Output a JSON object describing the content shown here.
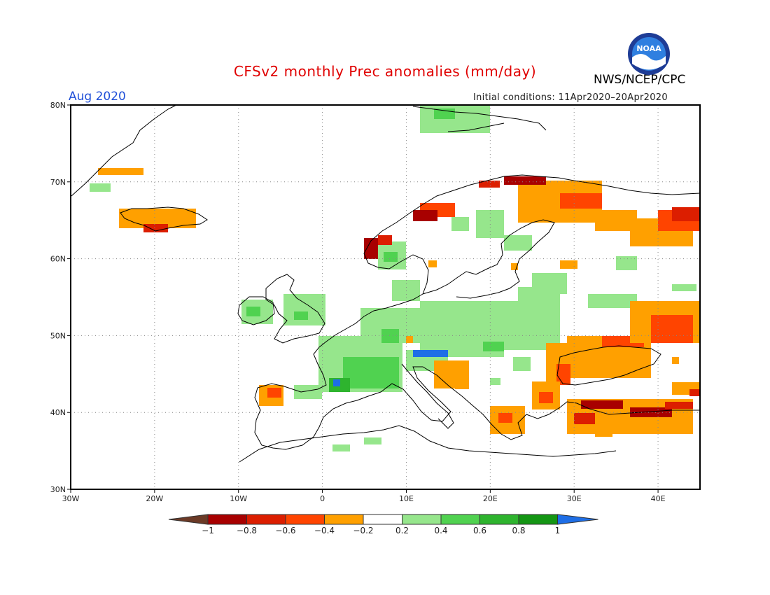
{
  "header": {
    "title": "CFSv2 monthly Prec anomalies (mm/day)",
    "agency": "NWS/NCEP/CPC",
    "logo_text": "NOAA",
    "month": "Aug 2020",
    "initial_conditions": "Initial conditions: 11Apr2020–20Apr2020"
  },
  "map": {
    "lat_ticks": [
      "80N",
      "70N",
      "60N",
      "50N",
      "40N",
      "30N"
    ],
    "lon_ticks": [
      "30W",
      "20W",
      "10W",
      "0",
      "10E",
      "20E",
      "30E",
      "40E"
    ],
    "lon_range": [
      -30,
      45
    ],
    "lat_range": [
      30,
      80
    ]
  },
  "colorbar": {
    "labels": [
      "−1",
      "−0.8",
      "−0.6",
      "−0.4",
      "−0.2",
      "0.2",
      "0.4",
      "0.6",
      "0.8",
      "1"
    ],
    "colors": [
      "#6b3a26",
      "#a80000",
      "#dc1e00",
      "#ff4400",
      "#ffa000",
      "#ffffff",
      "#96e68c",
      "#50d250",
      "#2eb42e",
      "#149614",
      "#1e6ee6"
    ]
  },
  "colors": {
    "title": "#e00000",
    "month": "#1f4fd8",
    "land_outline": "#000000",
    "grid": "#888888"
  }
}
